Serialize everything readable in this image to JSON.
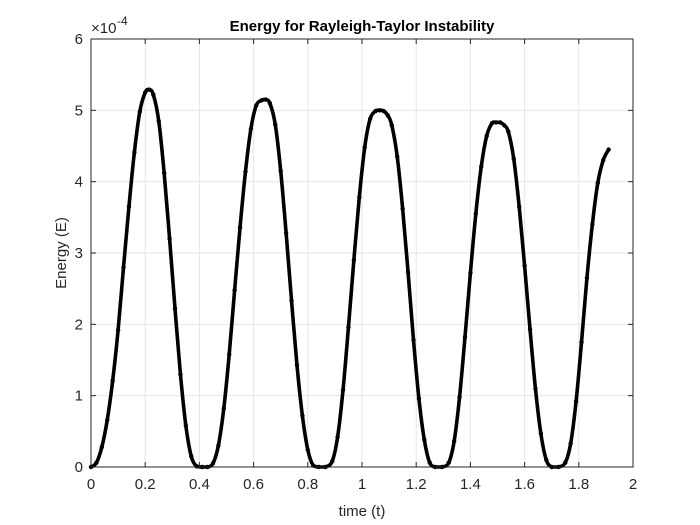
{
  "chart_data": {
    "type": "line",
    "title": "Energy for Rayleigh-Taylor Instability",
    "xlabel": "time (t)",
    "ylabel": "Energy (E)",
    "y_exponent_base": "×10",
    "y_exponent_power": "-4",
    "xlim": [
      0,
      2
    ],
    "ylim": [
      0,
      6
    ],
    "x_ticks": [
      "0",
      "0.2",
      "0.4",
      "0.6",
      "0.8",
      "1",
      "1.2",
      "1.4",
      "1.6",
      "1.8",
      "2"
    ],
    "y_ticks": [
      "0",
      "1",
      "2",
      "3",
      "4",
      "5",
      "6"
    ],
    "grid": true,
    "line_color": "#000000",
    "series": [
      {
        "x": [
          0,
          0.02,
          0.04,
          0.06,
          0.08,
          0.1,
          0.12,
          0.14,
          0.16,
          0.18,
          0.2,
          0.215,
          0.23,
          0.25,
          0.27,
          0.29,
          0.31,
          0.33,
          0.35,
          0.37,
          0.39,
          0.41,
          0.43,
          0.45,
          0.47,
          0.49,
          0.51,
          0.53,
          0.55,
          0.57,
          0.59,
          0.61,
          0.63,
          0.645,
          0.66,
          0.68,
          0.7,
          0.72,
          0.74,
          0.76,
          0.78,
          0.8,
          0.82,
          0.84,
          0.865,
          0.89,
          0.91,
          0.93,
          0.95,
          0.97,
          0.99,
          1.01,
          1.03,
          1.05,
          1.065,
          1.08,
          1.095,
          1.11,
          1.13,
          1.15,
          1.17,
          1.19,
          1.21,
          1.23,
          1.25,
          1.27,
          1.295,
          1.32,
          1.34,
          1.36,
          1.38,
          1.4,
          1.42,
          1.44,
          1.46,
          1.48,
          1.495,
          1.51,
          1.525,
          1.54,
          1.56,
          1.58,
          1.6,
          1.62,
          1.64,
          1.66,
          1.68,
          1.7,
          1.725,
          1.75,
          1.77,
          1.79,
          1.81,
          1.83,
          1.85,
          1.87,
          1.89,
          1.91
        ],
        "values": [
          0.0,
          0.06,
          0.28,
          0.66,
          1.21,
          1.92,
          2.8,
          3.65,
          4.41,
          4.98,
          5.25,
          5.29,
          5.22,
          4.85,
          4.12,
          3.2,
          2.22,
          1.3,
          0.58,
          0.15,
          0.01,
          0.0,
          0.0,
          0.05,
          0.3,
          0.82,
          1.58,
          2.48,
          3.36,
          4.14,
          4.74,
          5.07,
          5.14,
          5.15,
          5.1,
          4.8,
          4.15,
          3.28,
          2.33,
          1.43,
          0.72,
          0.24,
          0.02,
          0.0,
          0.0,
          0.08,
          0.42,
          1.08,
          1.96,
          2.9,
          3.78,
          4.48,
          4.88,
          4.99,
          5.0,
          4.99,
          4.93,
          4.79,
          4.35,
          3.62,
          2.73,
          1.78,
          0.96,
          0.38,
          0.06,
          0.0,
          0.0,
          0.06,
          0.36,
          0.98,
          1.82,
          2.72,
          3.55,
          4.21,
          4.64,
          4.82,
          4.83,
          4.83,
          4.79,
          4.7,
          4.32,
          3.65,
          2.82,
          1.93,
          1.1,
          0.47,
          0.1,
          0.0,
          0.0,
          0.06,
          0.33,
          0.92,
          1.75,
          2.65,
          3.4,
          3.98,
          4.3,
          4.45
        ]
      }
    ]
  }
}
